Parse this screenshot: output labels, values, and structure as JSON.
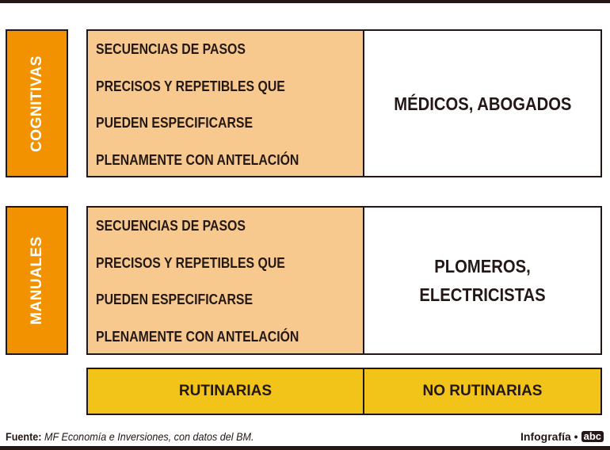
{
  "rows": [
    {
      "category": "COGNITIVAS",
      "description": [
        "SECUENCIAS DE PASOS",
        "PRECISOS Y REPETIBLES QUE",
        "PUEDEN ESPECIFICARSE",
        "PLENAMENTE CON ANTELACIÓN"
      ],
      "examples": "MÉDICOS, ABOGADOS"
    },
    {
      "category": "MANUALES",
      "description": [
        "SECUENCIAS DE PASOS",
        "PRECISOS Y REPETIBLES QUE",
        "PUEDEN ESPECIFICARSE",
        "PLENAMENTE CON ANTELACIÓN"
      ],
      "examples": "PLOMEROS, ELECTRICISTAS"
    }
  ],
  "columns": [
    "RUTINARIAS",
    "NO RUTINARIAS"
  ],
  "footer": {
    "source_label": "Fuente:",
    "source_text": "MF Economía e Inversiones, con datos del BM.",
    "credit": "Infografía •",
    "logo": "abc"
  },
  "colors": {
    "category": "#f39200",
    "description": "#f8c98e",
    "columns": "#f2c318",
    "dark": "#231815"
  }
}
